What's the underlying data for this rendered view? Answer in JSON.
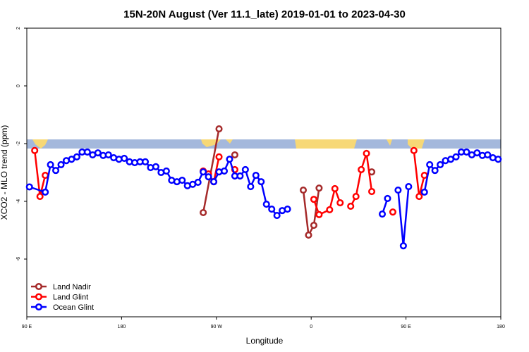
{
  "chart_data": {
    "type": "line",
    "title": "15N-20N August (Ver 11.1_late)   2019-01-01 to 2023-04-30",
    "xlabel": "Longitude",
    "ylabel": "XCO2 - MLO trend (ppm)",
    "xlim": [
      90,
      540
    ],
    "xticks": [
      {
        "value": 90,
        "label": "90 E"
      },
      {
        "value": 180,
        "label": "180"
      },
      {
        "value": 270,
        "label": "90 W"
      },
      {
        "value": 360,
        "label": "0"
      },
      {
        "value": 450,
        "label": "90 E"
      },
      {
        "value": 540,
        "label": "180"
      }
    ],
    "ylim": [
      -8,
      2
    ],
    "yticks": [
      -6,
      -4,
      -2,
      0,
      2
    ],
    "legend": "bottom-left",
    "series": [
      {
        "name": "Land Nadir",
        "color": "#a52a2a",
        "x": [
          257.5,
          272.5,
          282.5,
          287.5,
          347.5,
          352.5,
          357.5,
          362.5,
          367.5,
          392.5,
          417.5
        ],
        "values": [
          -4.39,
          -1.49,
          null,
          -2.39,
          null,
          -3.61,
          -5.17,
          -4.83,
          -3.54,
          null,
          -2.98
        ]
      },
      {
        "name": "Land Glint",
        "color": "#ff0000",
        "x": [
          97.5,
          102.5,
          107.5,
          182.5,
          257.5,
          262.5,
          267.5,
          272.5,
          277.5,
          287.5,
          357.5,
          362.5,
          367.5,
          377.5,
          382.5,
          387.5,
          392.5,
          397.5,
          402.5,
          407.5,
          412.5,
          417.5,
          427.5,
          437.5,
          447.5,
          457.5,
          462.5,
          467.5
        ],
        "values": [
          -2.24,
          -3.83,
          -3.1,
          null,
          -2.95,
          -3.05,
          -3.32,
          -2.46,
          null,
          -2.9,
          null,
          -3.93,
          -4.46,
          -4.29,
          -3.56,
          -4.05,
          null,
          -4.17,
          -3.83,
          -2.9,
          -2.34,
          -3.66,
          null,
          -4.37,
          null,
          -2.24,
          -3.83,
          -3.1
        ]
      },
      {
        "name": "Ocean Glint",
        "color": "#0000ff",
        "x": [
          92.5,
          107.5,
          112.5,
          117.5,
          122.5,
          127.5,
          132.5,
          137.5,
          142.5,
          147.5,
          152.5,
          157.5,
          162.5,
          167.5,
          172.5,
          177.5,
          182.5,
          187.5,
          192.5,
          197.5,
          202.5,
          207.5,
          212.5,
          217.5,
          222.5,
          227.5,
          232.5,
          237.5,
          242.5,
          247.5,
          252.5,
          257.5,
          262.5,
          267.5,
          272.5,
          277.5,
          282.5,
          287.5,
          292.5,
          297.5,
          302.5,
          307.5,
          312.5,
          317.5,
          322.5,
          327.5,
          332.5,
          337.5,
          342.5,
          427.5,
          432.5,
          437.5,
          442.5,
          447.5,
          452.5,
          457.5,
          467.5,
          472.5,
          477.5,
          482.5,
          487.5,
          492.5,
          497.5,
          502.5,
          507.5,
          512.5,
          517.5,
          522.5,
          527.5,
          532.5,
          537.5
        ],
        "values": [
          -3.5,
          -3.68,
          -2.73,
          -2.93,
          -2.73,
          -2.59,
          -2.54,
          -2.46,
          -2.29,
          -2.29,
          -2.39,
          -2.32,
          -2.41,
          -2.39,
          -2.49,
          -2.54,
          -2.51,
          -2.63,
          -2.66,
          -2.63,
          -2.63,
          -2.83,
          -2.8,
          -3.0,
          -2.95,
          -3.27,
          -3.32,
          -3.27,
          -3.46,
          -3.41,
          -3.34,
          -2.98,
          -3.15,
          -3.32,
          -2.98,
          -2.95,
          -2.54,
          -3.12,
          -3.12,
          -2.9,
          -3.49,
          -3.1,
          -3.32,
          -4.1,
          -4.27,
          -4.49,
          -4.32,
          -4.27,
          null,
          -4.44,
          -3.9,
          null,
          -3.61,
          -5.54,
          -3.49,
          null,
          -3.68,
          -2.73,
          -2.93,
          -2.73,
          -2.59,
          -2.54,
          -2.46,
          -2.29,
          -2.29,
          -2.39,
          -2.32,
          -2.41,
          -2.39,
          -2.49,
          -2.54
        ]
      }
    ]
  }
}
